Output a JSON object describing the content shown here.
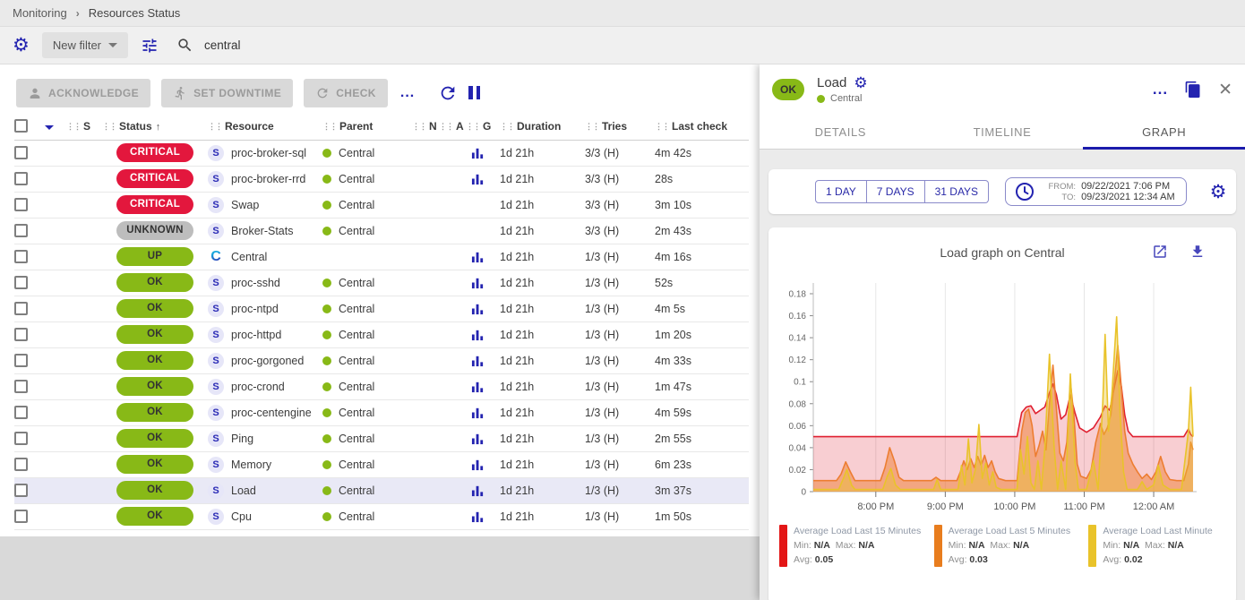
{
  "breadcrumb": {
    "section": "Monitoring",
    "page": "Resources Status"
  },
  "filter_bar": {
    "new_filter_label": "New filter",
    "search_value": "central"
  },
  "toolbar": {
    "acknowledge": "ACKNOWLEDGE",
    "set_downtime": "SET DOWNTIME",
    "check": "CHECK",
    "more": "..."
  },
  "status_colors": {
    "critical": "#e3173d",
    "unknown": "#bdbdbd",
    "ok": "#88b917",
    "up": "#88b917"
  },
  "accent_color": "#2323b0",
  "table": {
    "columns": [
      "S",
      "Status",
      "Resource",
      "Parent",
      "N",
      "A",
      "G",
      "Duration",
      "Tries",
      "Last check"
    ],
    "rows": [
      {
        "status": "CRITICAL",
        "status_key": "critical",
        "type": "service",
        "resource": "proc-broker-sql",
        "parent": "Central",
        "has_graph": true,
        "duration": "1d 21h",
        "tries": "3/3 (H)",
        "last_check": "4m 42s",
        "highlighted": false
      },
      {
        "status": "CRITICAL",
        "status_key": "critical",
        "type": "service",
        "resource": "proc-broker-rrd",
        "parent": "Central",
        "has_graph": true,
        "duration": "1d 21h",
        "tries": "3/3 (H)",
        "last_check": "28s",
        "highlighted": false
      },
      {
        "status": "CRITICAL",
        "status_key": "critical",
        "type": "service",
        "resource": "Swap",
        "parent": "Central",
        "has_graph": false,
        "duration": "1d 21h",
        "tries": "3/3 (H)",
        "last_check": "3m 10s",
        "highlighted": false
      },
      {
        "status": "UNKNOWN",
        "status_key": "unknown",
        "type": "service",
        "resource": "Broker-Stats",
        "parent": "Central",
        "has_graph": false,
        "duration": "1d 21h",
        "tries": "3/3 (H)",
        "last_check": "2m 43s",
        "highlighted": false
      },
      {
        "status": "UP",
        "status_key": "up",
        "type": "host",
        "resource": "Central",
        "parent": "",
        "has_graph": true,
        "duration": "1d 21h",
        "tries": "1/3 (H)",
        "last_check": "4m 16s",
        "highlighted": false
      },
      {
        "status": "OK",
        "status_key": "ok",
        "type": "service",
        "resource": "proc-sshd",
        "parent": "Central",
        "has_graph": true,
        "duration": "1d 21h",
        "tries": "1/3 (H)",
        "last_check": "52s",
        "highlighted": false
      },
      {
        "status": "OK",
        "status_key": "ok",
        "type": "service",
        "resource": "proc-ntpd",
        "parent": "Central",
        "has_graph": true,
        "duration": "1d 21h",
        "tries": "1/3 (H)",
        "last_check": "4m 5s",
        "highlighted": false
      },
      {
        "status": "OK",
        "status_key": "ok",
        "type": "service",
        "resource": "proc-httpd",
        "parent": "Central",
        "has_graph": true,
        "duration": "1d 21h",
        "tries": "1/3 (H)",
        "last_check": "1m 20s",
        "highlighted": false
      },
      {
        "status": "OK",
        "status_key": "ok",
        "type": "service",
        "resource": "proc-gorgoned",
        "parent": "Central",
        "has_graph": true,
        "duration": "1d 21h",
        "tries": "1/3 (H)",
        "last_check": "4m 33s",
        "highlighted": false
      },
      {
        "status": "OK",
        "status_key": "ok",
        "type": "service",
        "resource": "proc-crond",
        "parent": "Central",
        "has_graph": true,
        "duration": "1d 21h",
        "tries": "1/3 (H)",
        "last_check": "1m 47s",
        "highlighted": false
      },
      {
        "status": "OK",
        "status_key": "ok",
        "type": "service",
        "resource": "proc-centengine",
        "parent": "Central",
        "has_graph": true,
        "duration": "1d 21h",
        "tries": "1/3 (H)",
        "last_check": "4m 59s",
        "highlighted": false
      },
      {
        "status": "OK",
        "status_key": "ok",
        "type": "service",
        "resource": "Ping",
        "parent": "Central",
        "has_graph": true,
        "duration": "1d 21h",
        "tries": "1/3 (H)",
        "last_check": "2m 55s",
        "highlighted": false
      },
      {
        "status": "OK",
        "status_key": "ok",
        "type": "service",
        "resource": "Memory",
        "parent": "Central",
        "has_graph": true,
        "duration": "1d 21h",
        "tries": "1/3 (H)",
        "last_check": "6m 23s",
        "highlighted": false
      },
      {
        "status": "OK",
        "status_key": "ok",
        "type": "service",
        "resource": "Load",
        "parent": "Central",
        "has_graph": true,
        "duration": "1d 21h",
        "tries": "1/3 (H)",
        "last_check": "3m 37s",
        "highlighted": true
      },
      {
        "status": "OK",
        "status_key": "ok",
        "type": "service",
        "resource": "Cpu",
        "parent": "Central",
        "has_graph": true,
        "duration": "1d 21h",
        "tries": "1/3 (H)",
        "last_check": "1m 50s",
        "highlighted": false
      }
    ]
  },
  "panel": {
    "status": "OK",
    "title": "Load",
    "parent": "Central",
    "tabs": [
      "DETAILS",
      "TIMELINE",
      "GRAPH"
    ],
    "active_tab": "GRAPH",
    "time_buttons": [
      "1 DAY",
      "7 DAYS",
      "31 DAYS"
    ],
    "from_label": "FROM:",
    "from_value": "09/22/2021 7:06 PM",
    "to_label": "TO:",
    "to_value": "09/23/2021 12:34 AM"
  },
  "chart_data": {
    "type": "area",
    "title": "Load graph on Central",
    "x_unit": "minutes since 7:06 PM 09/22/2021",
    "x_max": 328,
    "y_max": 0.18,
    "y_tick_step": 0.02,
    "grid": "vertical-hour-lines",
    "legend_position": "bottom",
    "x_ticks": [
      {
        "t": 54,
        "label": "8:00 PM"
      },
      {
        "t": 114,
        "label": "9:00 PM"
      },
      {
        "t": 174,
        "label": "10:00 PM"
      },
      {
        "t": 234,
        "label": "11:00 PM"
      },
      {
        "t": 294,
        "label": "12:00 AM"
      }
    ],
    "legend": {
      "min_label": "Min:",
      "max_label": "Max:",
      "avg_label": "Avg:"
    },
    "series": [
      {
        "name": "Average Load Last 15 Minutes",
        "color": "#e02030",
        "fill": "rgba(224,32,48,0.22)",
        "swatch": "#e31616",
        "min": "N/A",
        "max": "N/A",
        "avg": "0.05",
        "points": [
          [
            0,
            0.05
          ],
          [
            176,
            0.05
          ],
          [
            180,
            0.072
          ],
          [
            184,
            0.077
          ],
          [
            188,
            0.078
          ],
          [
            192,
            0.071
          ],
          [
            196,
            0.074
          ],
          [
            200,
            0.077
          ],
          [
            204,
            0.09
          ],
          [
            207,
            0.098
          ],
          [
            210,
            0.088
          ],
          [
            214,
            0.066
          ],
          [
            218,
            0.07
          ],
          [
            222,
            0.088
          ],
          [
            226,
            0.072
          ],
          [
            230,
            0.058
          ],
          [
            236,
            0.054
          ],
          [
            242,
            0.058
          ],
          [
            248,
            0.068
          ],
          [
            252,
            0.078
          ],
          [
            256,
            0.074
          ],
          [
            260,
            0.095
          ],
          [
            263,
            0.11
          ],
          [
            266,
            0.096
          ],
          [
            269,
            0.07
          ],
          [
            272,
            0.055
          ],
          [
            276,
            0.05
          ],
          [
            320,
            0.05
          ],
          [
            324,
            0.057
          ],
          [
            326,
            0.052
          ],
          [
            328,
            0.05
          ]
        ]
      },
      {
        "name": "Average Load Last 5 Minutes",
        "color": "#ed7d31",
        "fill": "rgba(237,125,49,0.5)",
        "swatch": "#e87d1e",
        "min": "N/A",
        "max": "N/A",
        "avg": "0.03",
        "points": [
          [
            0,
            0.01
          ],
          [
            20,
            0.01
          ],
          [
            24,
            0.016
          ],
          [
            28,
            0.027
          ],
          [
            32,
            0.018
          ],
          [
            36,
            0.01
          ],
          [
            58,
            0.01
          ],
          [
            62,
            0.022
          ],
          [
            66,
            0.04
          ],
          [
            70,
            0.028
          ],
          [
            74,
            0.013
          ],
          [
            78,
            0.01
          ],
          [
            102,
            0.01
          ],
          [
            106,
            0.013
          ],
          [
            110,
            0.01
          ],
          [
            124,
            0.01
          ],
          [
            127,
            0.018
          ],
          [
            130,
            0.028
          ],
          [
            133,
            0.02
          ],
          [
            136,
            0.03
          ],
          [
            139,
            0.022
          ],
          [
            142,
            0.032
          ],
          [
            145,
            0.024
          ],
          [
            148,
            0.033
          ],
          [
            151,
            0.022
          ],
          [
            154,
            0.028
          ],
          [
            157,
            0.018
          ],
          [
            160,
            0.012
          ],
          [
            166,
            0.01
          ],
          [
            176,
            0.01
          ],
          [
            180,
            0.055
          ],
          [
            183,
            0.072
          ],
          [
            186,
            0.075
          ],
          [
            189,
            0.06
          ],
          [
            192,
            0.032
          ],
          [
            195,
            0.042
          ],
          [
            198,
            0.055
          ],
          [
            201,
            0.038
          ],
          [
            204,
            0.08
          ],
          [
            207,
            0.115
          ],
          [
            210,
            0.075
          ],
          [
            213,
            0.035
          ],
          [
            216,
            0.028
          ],
          [
            219,
            0.045
          ],
          [
            222,
            0.1
          ],
          [
            225,
            0.07
          ],
          [
            228,
            0.025
          ],
          [
            231,
            0.014
          ],
          [
            236,
            0.012
          ],
          [
            240,
            0.02
          ],
          [
            244,
            0.045
          ],
          [
            248,
            0.062
          ],
          [
            251,
            0.052
          ],
          [
            254,
            0.058
          ],
          [
            257,
            0.07
          ],
          [
            260,
            0.1
          ],
          [
            263,
            0.133
          ],
          [
            266,
            0.095
          ],
          [
            269,
            0.055
          ],
          [
            272,
            0.035
          ],
          [
            276,
            0.025
          ],
          [
            280,
            0.018
          ],
          [
            284,
            0.012
          ],
          [
            288,
            0.016
          ],
          [
            292,
            0.011
          ],
          [
            296,
            0.018
          ],
          [
            300,
            0.032
          ],
          [
            304,
            0.018
          ],
          [
            308,
            0.011
          ],
          [
            314,
            0.01
          ],
          [
            320,
            0.01
          ],
          [
            324,
            0.025
          ],
          [
            326,
            0.045
          ],
          [
            328,
            0.038
          ]
        ]
      },
      {
        "name": "Average Load Last Minute",
        "color": "#e9c32a",
        "fill": "rgba(233,195,42,0.38)",
        "swatch": "#e9c32a",
        "min": "N/A",
        "max": "N/A",
        "avg": "0.02",
        "points": [
          [
            0,
            0.002
          ],
          [
            22,
            0.002
          ],
          [
            26,
            0.012
          ],
          [
            29,
            0.02
          ],
          [
            33,
            0.006
          ],
          [
            36,
            0.002
          ],
          [
            60,
            0.002
          ],
          [
            64,
            0.014
          ],
          [
            67,
            0.021
          ],
          [
            71,
            0.006
          ],
          [
            75,
            0.002
          ],
          [
            104,
            0.002
          ],
          [
            107,
            0.011
          ],
          [
            110,
            0.002
          ],
          [
            125,
            0.002
          ],
          [
            128,
            0.024
          ],
          [
            131,
            0.006
          ],
          [
            134,
            0.048
          ],
          [
            137,
            0.008
          ],
          [
            140,
            0.02
          ],
          [
            143,
            0.061
          ],
          [
            146,
            0.012
          ],
          [
            149,
            0.026
          ],
          [
            152,
            0.006
          ],
          [
            155,
            0.018
          ],
          [
            158,
            0.004
          ],
          [
            162,
            0.002
          ],
          [
            176,
            0.002
          ],
          [
            179,
            0.038
          ],
          [
            182,
            0.016
          ],
          [
            185,
            0.05
          ],
          [
            188,
            0.008
          ],
          [
            191,
            0.002
          ],
          [
            194,
            0.028
          ],
          [
            197,
            0.002
          ],
          [
            200,
            0.04
          ],
          [
            204,
            0.125
          ],
          [
            208,
            0.04
          ],
          [
            211,
            0.002
          ],
          [
            214,
            0.028
          ],
          [
            218,
            0.002
          ],
          [
            222,
            0.107
          ],
          [
            226,
            0.028
          ],
          [
            229,
            0.002
          ],
          [
            236,
            0.002
          ],
          [
            242,
            0.028
          ],
          [
            246,
            0.002
          ],
          [
            250,
            0.08
          ],
          [
            252,
            0.143
          ],
          [
            255,
            0.055
          ],
          [
            258,
            0.09
          ],
          [
            262,
            0.159
          ],
          [
            265,
            0.07
          ],
          [
            268,
            0.018
          ],
          [
            271,
            0.002
          ],
          [
            280,
            0.002
          ],
          [
            284,
            0.009
          ],
          [
            288,
            0.002
          ],
          [
            294,
            0.006
          ],
          [
            298,
            0.024
          ],
          [
            302,
            0.006
          ],
          [
            308,
            0.002
          ],
          [
            318,
            0.002
          ],
          [
            324,
            0.055
          ],
          [
            326,
            0.095
          ],
          [
            328,
            0.05
          ]
        ]
      }
    ]
  }
}
